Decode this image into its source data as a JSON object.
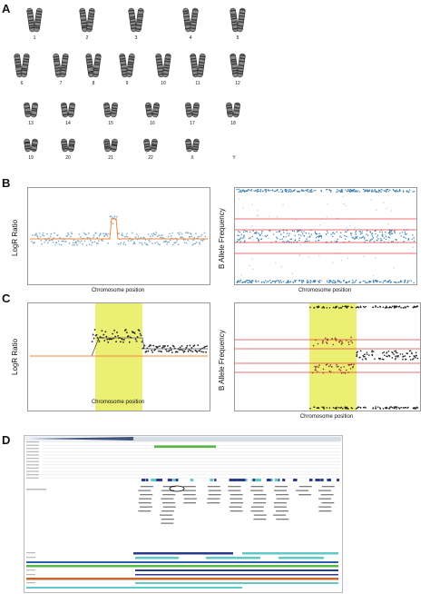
{
  "panels": {
    "a": {
      "letter": "A"
    },
    "b": {
      "letter": "B"
    },
    "c": {
      "letter": "C"
    },
    "d": {
      "letter": "D"
    }
  },
  "karyotype": {
    "row1": [
      "1",
      "2",
      "3",
      "4",
      "5"
    ],
    "row2": [
      "6",
      "7",
      "8",
      "9",
      "10",
      "11",
      "12"
    ],
    "row3": [
      "13",
      "14",
      "15",
      "16",
      "17",
      "18"
    ],
    "row4": [
      "19",
      "20",
      "21",
      "22",
      "X",
      "Y"
    ]
  },
  "plots": {
    "b_left": {
      "ylabel": "LogR Ratio",
      "xlabel": "Chromosome position"
    },
    "b_right": {
      "ylabel": "B Allele Frequency",
      "xlabel": "Chromosome position"
    },
    "c_left": {
      "ylabel": "LogR Ratio",
      "xlabel": "Chromosome position"
    },
    "c_right": {
      "ylabel": "B Allele Frequency",
      "xlabel": "Chromosome position"
    }
  },
  "colors": {
    "logr_line": "#f08a3c",
    "baf_line": "#e23b3b",
    "highlight": "#e8ec5a",
    "point_blue": "#3b7fb0",
    "track_green": "#59b848",
    "track_navy": "#2b3a8c",
    "track_teal": "#5fc9c7",
    "track_orange": "#c9662c"
  }
}
